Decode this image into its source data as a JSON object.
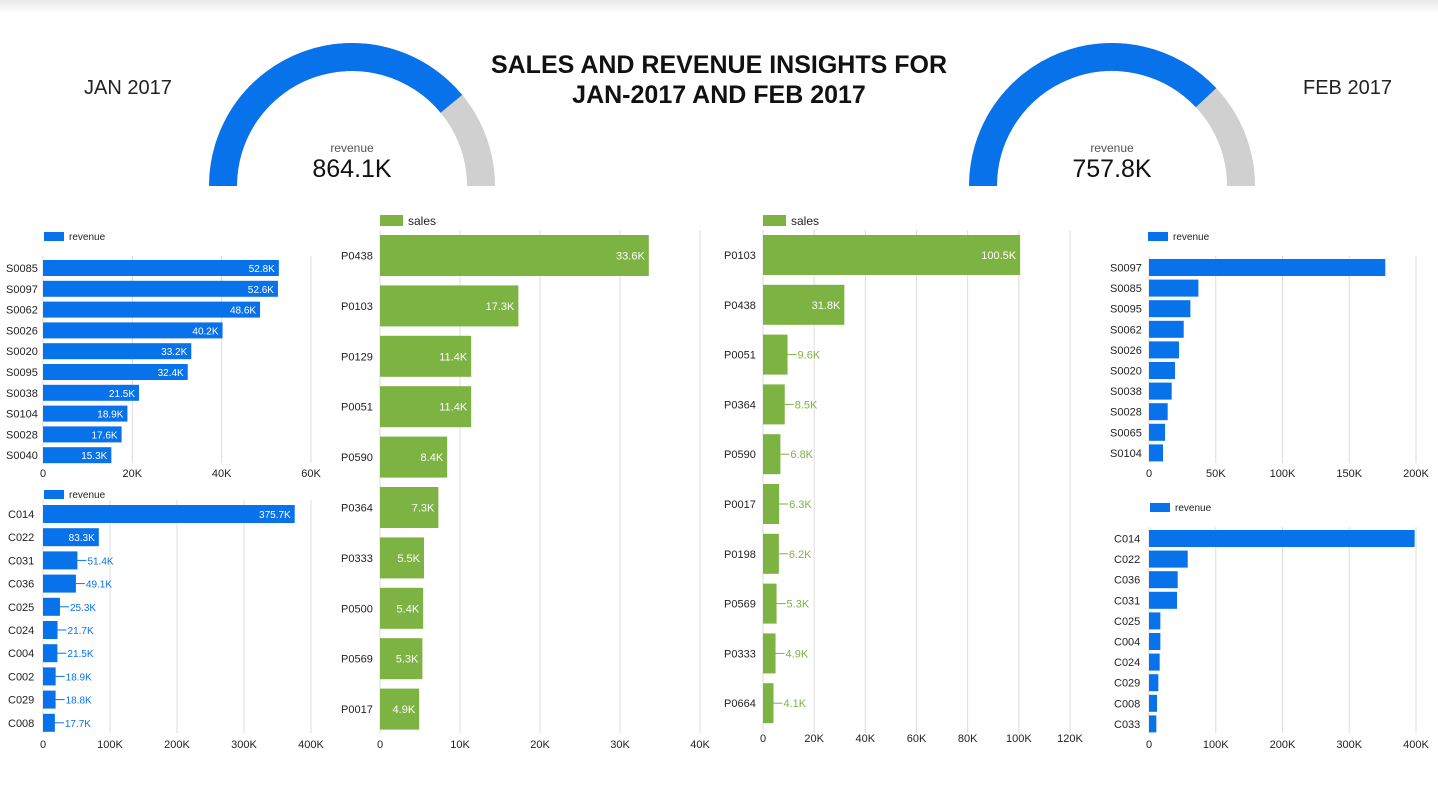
{
  "title_line1": "SALES AND REVENUE INSIGHTS FOR",
  "title_line2": "JAN-2017 AND FEB 2017",
  "jan_label": "JAN 2017",
  "feb_label": "FEB 2017",
  "colors": {
    "blue": "#0872eb",
    "green": "#7cb342",
    "gauge_track": "#d0d0d0",
    "grid": "#dddddd"
  },
  "chart_data": [
    {
      "id": "gauge_jan",
      "type": "gauge",
      "caption": "revenue",
      "display": "864.1K",
      "fraction": 0.78
    },
    {
      "id": "gauge_feb",
      "type": "gauge",
      "caption": "revenue",
      "display": "757.8K",
      "fraction": 0.76
    },
    {
      "id": "jan_store_revenue",
      "type": "bar",
      "orientation": "horizontal",
      "legend": "revenue",
      "categories": [
        "S0085",
        "S0097",
        "S0062",
        "S0026",
        "S0020",
        "S0095",
        "S0038",
        "S0104",
        "S0028",
        "S0040"
      ],
      "values": [
        52800,
        52600,
        48600,
        40200,
        33200,
        32400,
        21500,
        18900,
        17600,
        15300
      ],
      "labels": [
        "52.8K",
        "52.6K",
        "48.6K",
        "40.2K",
        "33.2K",
        "32.4K",
        "21.5K",
        "18.9K",
        "17.6K",
        "15.3K"
      ],
      "xticks": [
        "0",
        "20K",
        "40K",
        "60K"
      ],
      "tick_values": [
        0,
        20000,
        40000,
        60000
      ],
      "xlim": [
        0,
        60000
      ]
    },
    {
      "id": "jan_customer_revenue",
      "type": "bar",
      "orientation": "horizontal",
      "legend": "revenue",
      "categories": [
        "C014",
        "C022",
        "C031",
        "C036",
        "C025",
        "C024",
        "C004",
        "C002",
        "C029",
        "C008"
      ],
      "values": [
        375700,
        83300,
        51400,
        49100,
        25300,
        21700,
        21500,
        18900,
        18800,
        17700
      ],
      "labels": [
        "375.7K",
        "83.3K",
        "51.4K",
        "49.1K",
        "25.3K",
        "21.7K",
        "21.5K",
        "18.9K",
        "18.8K",
        "17.7K"
      ],
      "xticks": [
        "0",
        "100K",
        "200K",
        "300K",
        "400K"
      ],
      "tick_values": [
        0,
        100000,
        200000,
        300000,
        400000
      ],
      "xlim": [
        0,
        400000
      ]
    },
    {
      "id": "jan_product_sales",
      "type": "bar",
      "orientation": "horizontal",
      "legend": "sales",
      "categories": [
        "P0438",
        "P0103",
        "P0129",
        "P0051",
        "P0590",
        "P0364",
        "P0333",
        "P0500",
        "P0569",
        "P0017"
      ],
      "values": [
        33600,
        17300,
        11400,
        11400,
        8400,
        7300,
        5500,
        5400,
        5300,
        4900
      ],
      "labels": [
        "33.6K",
        "17.3K",
        "11.4K",
        "11.4K",
        "8.4K",
        "7.3K",
        "5.5K",
        "5.4K",
        "5.3K",
        "4.9K"
      ],
      "xticks": [
        "0",
        "10K",
        "20K",
        "30K",
        "40K"
      ],
      "tick_values": [
        0,
        10000,
        20000,
        30000,
        40000
      ],
      "xlim": [
        0,
        40000
      ]
    },
    {
      "id": "feb_product_sales",
      "type": "bar",
      "orientation": "horizontal",
      "legend": "sales",
      "categories": [
        "P0103",
        "P0438",
        "P0051",
        "P0364",
        "P0590",
        "P0017",
        "P0198",
        "P0569",
        "P0333",
        "P0664"
      ],
      "values": [
        100500,
        31800,
        9600,
        8500,
        6800,
        6300,
        6200,
        5300,
        4900,
        4100
      ],
      "labels": [
        "100.5K",
        "31.8K",
        "9.6K",
        "8.5K",
        "6.8K",
        "6.3K",
        "6.2K",
        "5.3K",
        "4.9K",
        "4.1K"
      ],
      "xticks": [
        "0",
        "20K",
        "40K",
        "60K",
        "80K",
        "100K",
        "120K"
      ],
      "tick_values": [
        0,
        20000,
        40000,
        60000,
        80000,
        100000,
        120000
      ],
      "xlim": [
        0,
        120000
      ]
    },
    {
      "id": "feb_store_revenue",
      "type": "bar",
      "orientation": "horizontal",
      "legend": "revenue",
      "categories": [
        "S0097",
        "S0085",
        "S0095",
        "S0062",
        "S0026",
        "S0020",
        "S0038",
        "S0028",
        "S0065",
        "S0104"
      ],
      "values": [
        177000,
        37000,
        31000,
        26000,
        22500,
        19500,
        17000,
        14000,
        12000,
        10500
      ],
      "xticks": [
        "0",
        "50K",
        "100K",
        "150K",
        "200K"
      ],
      "tick_values": [
        0,
        50000,
        100000,
        150000,
        200000
      ],
      "xlim": [
        0,
        200000
      ]
    },
    {
      "id": "feb_customer_revenue",
      "type": "bar",
      "orientation": "horizontal",
      "legend": "revenue",
      "categories": [
        "C014",
        "C022",
        "C036",
        "C031",
        "C025",
        "C004",
        "C024",
        "C029",
        "C008",
        "C033"
      ],
      "values": [
        398000,
        58000,
        43000,
        42000,
        17000,
        17000,
        16000,
        14000,
        12000,
        11000
      ],
      "xticks": [
        "0",
        "100K",
        "200K",
        "300K",
        "400K"
      ],
      "tick_values": [
        0,
        100000,
        200000,
        300000,
        400000
      ],
      "xlim": [
        0,
        400000
      ]
    }
  ]
}
